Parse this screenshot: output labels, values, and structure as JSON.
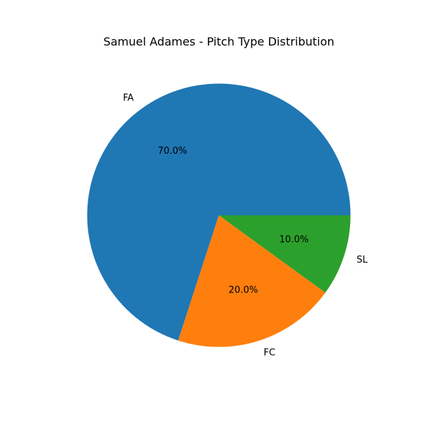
{
  "chart_data": {
    "type": "pie",
    "title": "Samuel Adames - Pitch Type Distribution",
    "labels": [
      "FA",
      "FC",
      "SL"
    ],
    "values": [
      70.0,
      20.0,
      10.0
    ],
    "percent_labels": [
      "70.0%",
      "20.0%",
      "10.0%"
    ],
    "colors": [
      "#1f77b4",
      "#ff7f0e",
      "#2ca02c"
    ],
    "start_angle_deg": 0,
    "direction": "counterclockwise",
    "legend": "none"
  }
}
